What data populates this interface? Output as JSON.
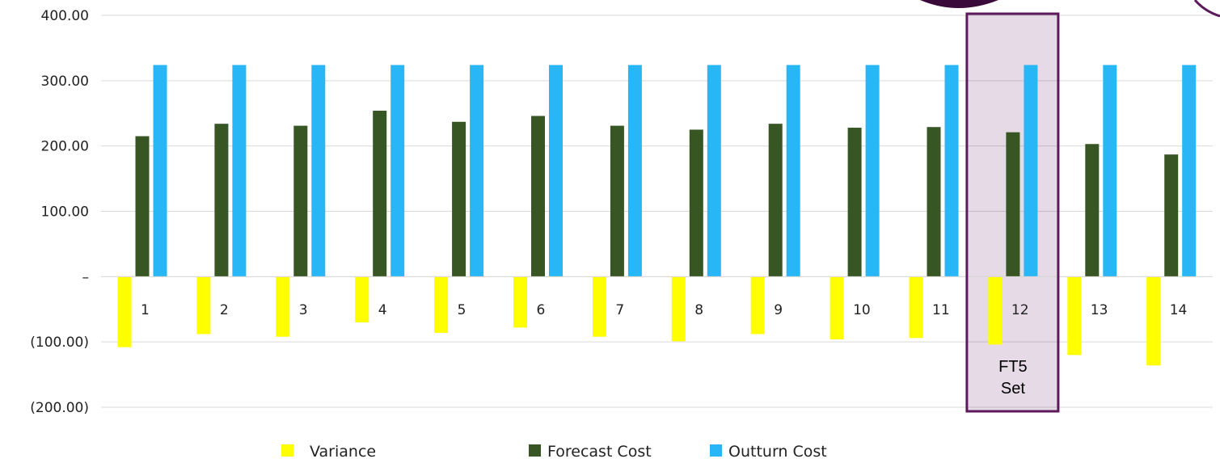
{
  "chart_data": {
    "type": "bar",
    "categories": [
      "1",
      "2",
      "3",
      "4",
      "5",
      "6",
      "7",
      "8",
      "9",
      "10",
      "11",
      "12",
      "13",
      "14"
    ],
    "series": [
      {
        "name": "Variance",
        "color": "#ffff00",
        "values": [
          -108,
          -88,
          -92,
          -70,
          -86,
          -78,
          -92,
          -99,
          -88,
          -96,
          -94,
          -104,
          -120,
          -136
        ]
      },
      {
        "name": "Forecast Cost",
        "color": "#375623",
        "values": [
          215,
          234,
          231,
          254,
          237,
          246,
          231,
          225,
          234,
          228,
          229,
          221,
          203,
          187
        ]
      },
      {
        "name": "Outturn Cost",
        "color": "#29b6f6",
        "values": [
          324,
          324,
          324,
          324,
          324,
          324,
          324,
          324,
          324,
          324,
          324,
          324,
          324,
          324
        ]
      }
    ],
    "ylim": [
      -200,
      400
    ],
    "y_ticks": [
      {
        "value": 400,
        "label": "400.00"
      },
      {
        "value": 300,
        "label": "300.00"
      },
      {
        "value": 200,
        "label": "200.00"
      },
      {
        "value": 100,
        "label": "100.00"
      },
      {
        "value": 0,
        "label": "–"
      },
      {
        "value": -100,
        "label": "(100.00)"
      },
      {
        "value": -200,
        "label": "(200.00)"
      }
    ],
    "grid": true,
    "legend": "bottom",
    "annotation": {
      "category": "12",
      "lines": [
        "FT5",
        "Set"
      ],
      "highlight_color": "#5c1a5c"
    }
  }
}
